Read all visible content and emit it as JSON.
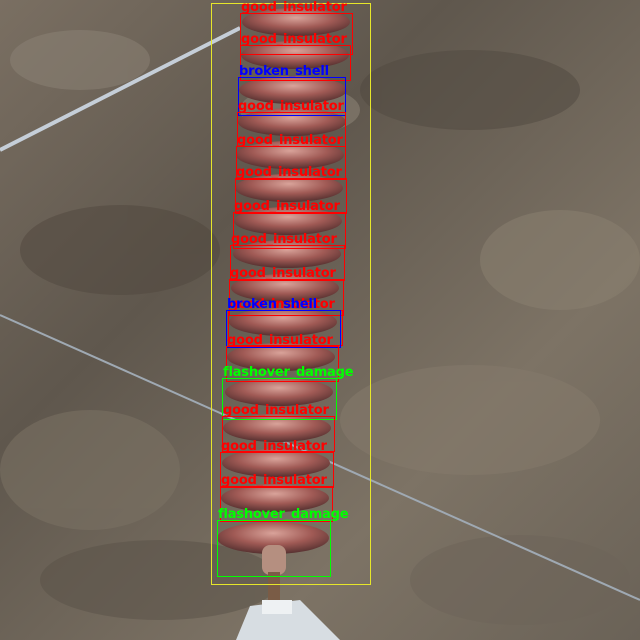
{
  "image": {
    "description_free": true
  },
  "classes": {
    "good_insulator": {
      "label": "good_insulator",
      "color": "#ff0000"
    },
    "broken_shell": {
      "label": "broken_shell",
      "color": "#0000ff"
    },
    "flashover_damage": {
      "label": "flashover_damage",
      "color": "#00ff00"
    },
    "string": {
      "label": "",
      "color": "#e6e62a"
    }
  },
  "detections": [
    {
      "cls": "string"
    },
    {
      "cls": "good_insulator"
    },
    {
      "cls": "good_insulator"
    },
    {
      "cls": "broken_shell"
    },
    {
      "cls": "good_insulator"
    },
    {
      "cls": "good_insulator"
    },
    {
      "cls": "good_insulator"
    },
    {
      "cls": "good_insulator"
    },
    {
      "cls": "good_insulator"
    },
    {
      "cls": "good_insulator"
    },
    {
      "cls": "good_insulator"
    },
    {
      "cls": "broken_shell"
    },
    {
      "cls": "good_insulator"
    },
    {
      "cls": "flashover_damage"
    },
    {
      "cls": "good_insulator"
    },
    {
      "cls": "good_insulator"
    },
    {
      "cls": "good_insulator"
    },
    {
      "cls": "flashover_damage"
    }
  ]
}
